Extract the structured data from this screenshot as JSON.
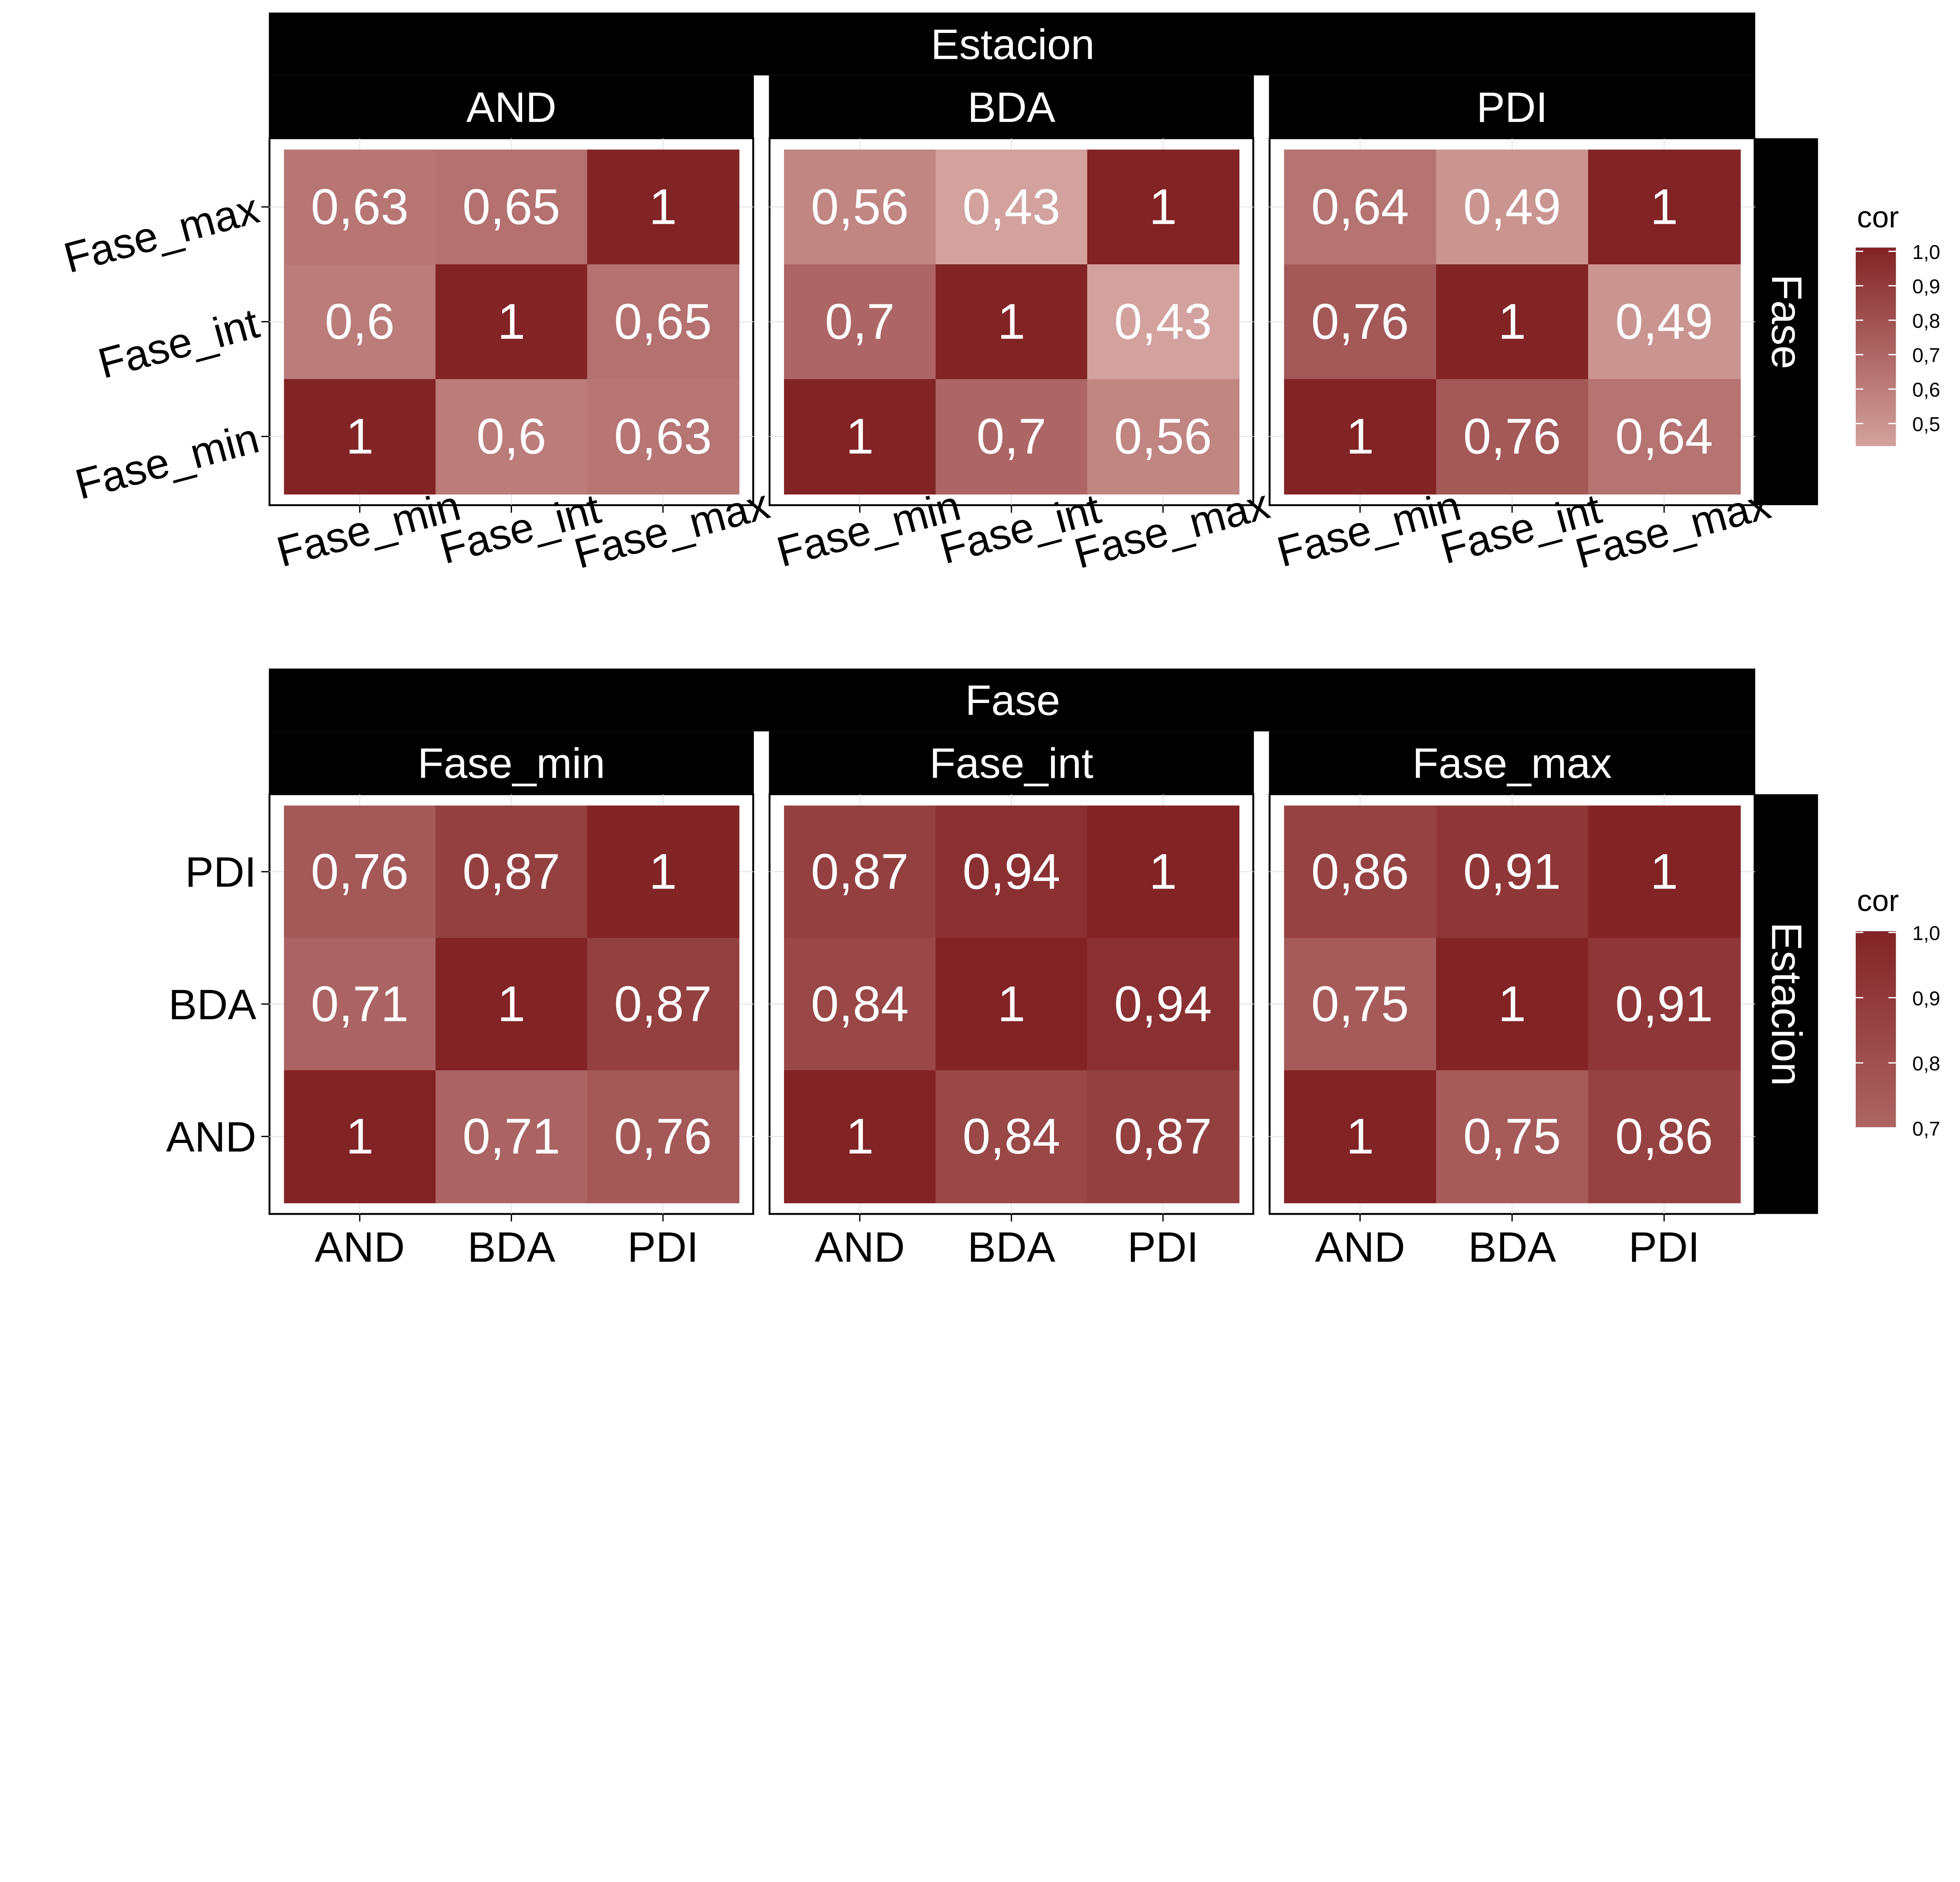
{
  "chart_data": [
    {
      "type": "heatmap",
      "facet_title": "Estacion",
      "row_strip": "Fase",
      "legend_title": "cor",
      "legend_ticks": [
        "1,0",
        "0,9",
        "0,8",
        "0,7",
        "0,6",
        "0,5"
      ],
      "legend_tick_values": [
        1.0,
        0.9,
        0.8,
        0.7,
        0.6,
        0.5
      ],
      "legend_range": [
        0.43,
        1.0
      ],
      "x_categories": [
        "Fase_min",
        "Fase_int",
        "Fase_max"
      ],
      "y_categories": [
        "Fase_max",
        "Fase_int",
        "Fase_min"
      ],
      "panels": [
        {
          "name": "AND",
          "values": [
            [
              0.63,
              0.65,
              1
            ],
            [
              0.6,
              1,
              0.65
            ],
            [
              1,
              0.6,
              0.63
            ]
          ],
          "labels": [
            [
              "0,63",
              "0,65",
              "1"
            ],
            [
              "0,6",
              "1",
              "0,65"
            ],
            [
              "1",
              "0,6",
              "0,63"
            ]
          ]
        },
        {
          "name": "BDA",
          "values": [
            [
              0.56,
              0.43,
              1
            ],
            [
              0.7,
              1,
              0.43
            ],
            [
              1,
              0.7,
              0.56
            ]
          ],
          "labels": [
            [
              "0,56",
              "0,43",
              "1"
            ],
            [
              "0,7",
              "1",
              "0,43"
            ],
            [
              "1",
              "0,7",
              "0,56"
            ]
          ]
        },
        {
          "name": "PDI",
          "values": [
            [
              0.64,
              0.49,
              1
            ],
            [
              0.76,
              1,
              0.49
            ],
            [
              1,
              0.76,
              0.64
            ]
          ],
          "labels": [
            [
              "0,64",
              "0,49",
              "1"
            ],
            [
              "0,76",
              "1",
              "0,49"
            ],
            [
              "1",
              "0,76",
              "0,64"
            ]
          ]
        }
      ]
    },
    {
      "type": "heatmap",
      "facet_title": "Fase",
      "row_strip": "Estacion",
      "legend_title": "cor",
      "legend_ticks": [
        "1,0",
        "0,9",
        "0,8",
        "0,7"
      ],
      "legend_tick_values": [
        1.0,
        0.9,
        0.8,
        0.7
      ],
      "legend_range": [
        0.7,
        1.0
      ],
      "x_categories": [
        "AND",
        "BDA",
        "PDI"
      ],
      "y_categories": [
        "PDI",
        "BDA",
        "AND"
      ],
      "panels": [
        {
          "name": "Fase_min",
          "values": [
            [
              0.76,
              0.87,
              1
            ],
            [
              0.71,
              1,
              0.87
            ],
            [
              1,
              0.71,
              0.76
            ]
          ],
          "labels": [
            [
              "0,76",
              "0,87",
              "1"
            ],
            [
              "0,71",
              "1",
              "0,87"
            ],
            [
              "1",
              "0,71",
              "0,76"
            ]
          ]
        },
        {
          "name": "Fase_int",
          "values": [
            [
              0.87,
              0.94,
              1
            ],
            [
              0.84,
              1,
              0.94
            ],
            [
              1,
              0.84,
              0.87
            ]
          ],
          "labels": [
            [
              "0,87",
              "0,94",
              "1"
            ],
            [
              "0,84",
              "1",
              "0,94"
            ],
            [
              "1",
              "0,84",
              "0,87"
            ]
          ]
        },
        {
          "name": "Fase_max",
          "values": [
            [
              0.86,
              0.91,
              1
            ],
            [
              0.75,
              1,
              0.91
            ],
            [
              1,
              0.75,
              0.86
            ]
          ],
          "labels": [
            [
              "0,86",
              "0,91",
              "1"
            ],
            [
              "0,75",
              "1",
              "0,91"
            ],
            [
              "1",
              "0,75",
              "0,86"
            ]
          ]
        }
      ]
    }
  ],
  "colors": {
    "low": "#d3a29e",
    "high": "#822325",
    "strip": "#000000"
  }
}
